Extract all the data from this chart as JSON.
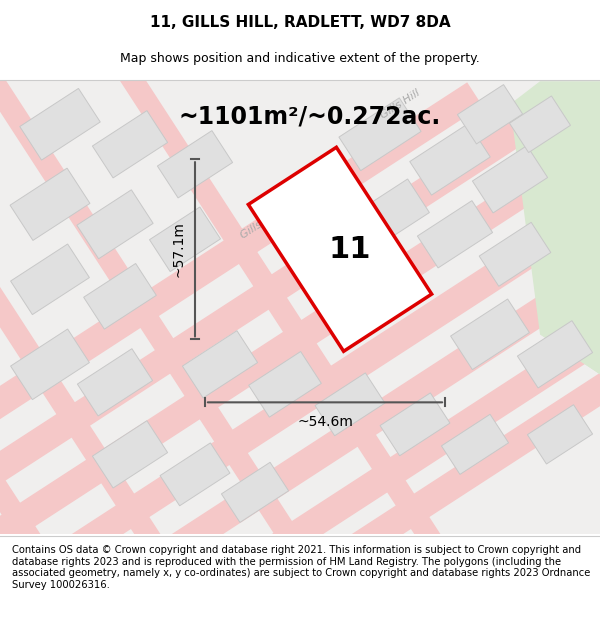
{
  "title": "11, GILLS HILL, RADLETT, WD7 8DA",
  "subtitle": "Map shows position and indicative extent of the property.",
  "area_text": "~1101m²/~0.272ac.",
  "label_number": "11",
  "dim_width": "~54.6m",
  "dim_height": "~57.1m",
  "footer": "Contains OS data © Crown copyright and database right 2021. This information is subject to Crown copyright and database rights 2023 and is reproduced with the permission of HM Land Registry. The polygons (including the associated geometry, namely x, y co-ordinates) are subject to Crown copyright and database rights 2023 Ordnance Survey 100026316.",
  "bg_color": "#f0efee",
  "map_bg": "#f0efee",
  "road_color": "#f5c8c8",
  "road_center_color": "#f0a0a0",
  "block_color": "#e0e0e0",
  "block_edge_color": "#c8c8c8",
  "green_area_color": "#d8e8d0",
  "plot_outline_color": "#dd0000",
  "plot_fill_color": "#ffffff",
  "dim_line_color": "#555555",
  "street_label_color": "#aaaaaa",
  "title_fontsize": 11,
  "subtitle_fontsize": 9,
  "area_fontsize": 17,
  "label_fontsize": 22,
  "dim_fontsize": 10,
  "footer_fontsize": 7.2,
  "street_label_fontsize": 8,
  "figwidth": 6.0,
  "figheight": 6.25
}
